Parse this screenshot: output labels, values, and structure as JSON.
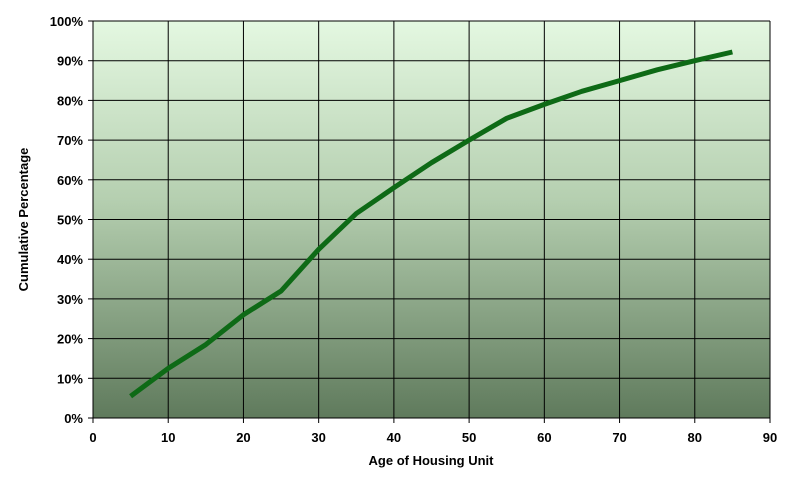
{
  "chart_data": {
    "type": "line",
    "title": "",
    "xlabel": "Age of Housing Unit",
    "ylabel": "Cumulative Percentage",
    "xlim": [
      0,
      90
    ],
    "ylim": [
      0,
      100
    ],
    "x_ticks": [
      0,
      10,
      20,
      30,
      40,
      50,
      60,
      70,
      80,
      90
    ],
    "x_tick_labels": [
      "0",
      "10",
      "20",
      "30",
      "40",
      "50",
      "60",
      "70",
      "80",
      "90"
    ],
    "y_ticks": [
      0,
      10,
      20,
      30,
      40,
      50,
      60,
      70,
      80,
      90,
      100
    ],
    "y_tick_labels": [
      "0%",
      "10%",
      "20%",
      "30%",
      "40%",
      "50%",
      "60%",
      "70%",
      "80%",
      "90%",
      "100%"
    ],
    "grid": true,
    "legend": "none",
    "series": [
      {
        "x": [
          5,
          10,
          15,
          20,
          25,
          30,
          35,
          40,
          45,
          50,
          55,
          60,
          65,
          70,
          75,
          80,
          85
        ],
        "y": [
          5.5,
          12.5,
          18.5,
          26,
          32,
          42.5,
          51.5,
          58,
          64.3,
          70,
          75.5,
          79,
          82.3,
          85,
          87.7,
          90,
          92.2
        ]
      }
    ],
    "colors": {
      "line": "#0e6a16",
      "plot_bg_top": "#e4f8e1",
      "plot_bg_bottom": "#5f7a5c",
      "grid": "#000000"
    }
  }
}
